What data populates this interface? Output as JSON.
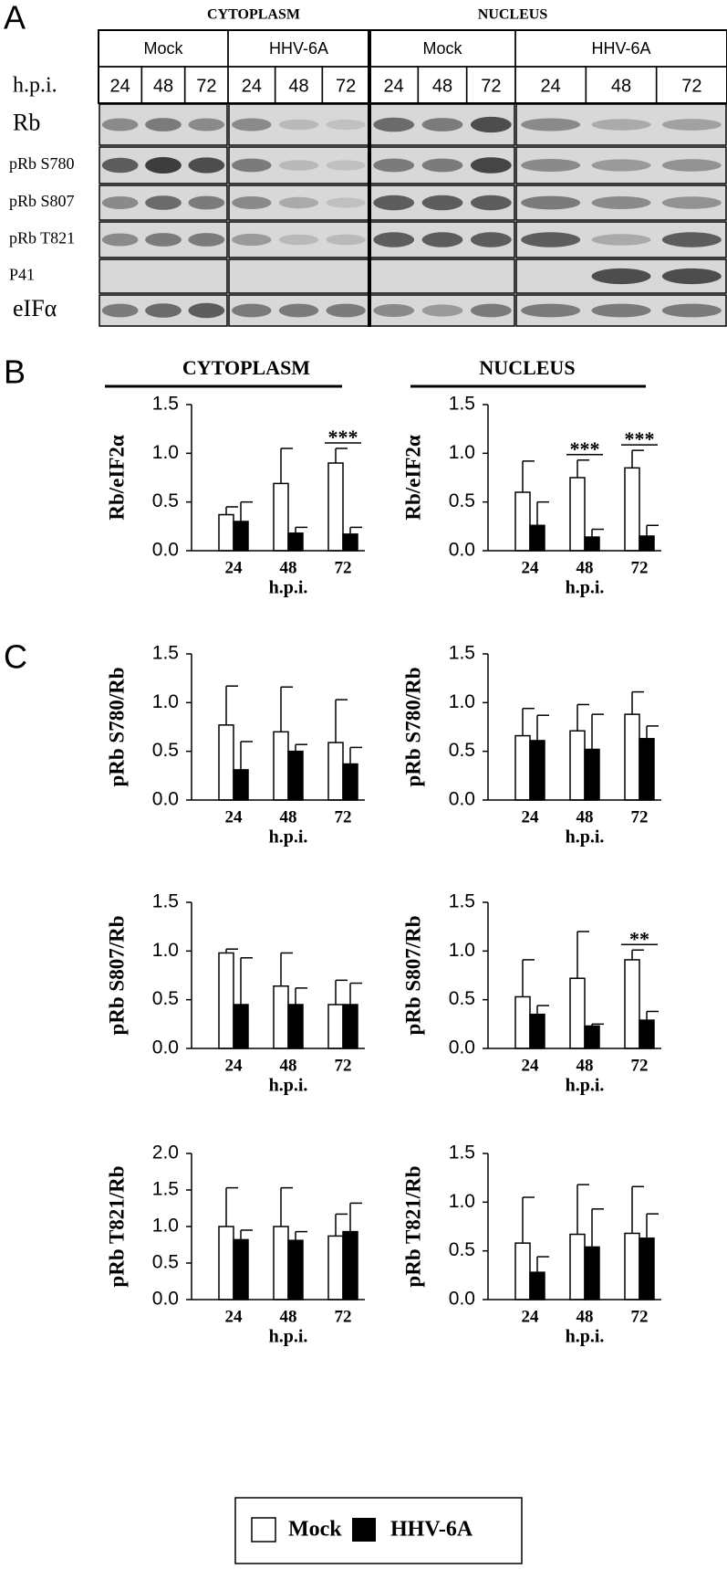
{
  "panel_labels": [
    "A",
    "B",
    "C"
  ],
  "blot": {
    "sections": [
      "CYTOPLASM",
      "NUCLEUS"
    ],
    "groups": [
      "Mock",
      "HHV-6A",
      "Mock",
      "HHV-6A"
    ],
    "hpi_label": "h.p.i.",
    "hpi": [
      "24",
      "48",
      "72"
    ],
    "rows": [
      "Rb",
      "pRb S780",
      "pRb S807",
      "pRb T821",
      "P41",
      "eIFα"
    ]
  },
  "section_headers": [
    "CYTOPLASM",
    "NUCLEUS"
  ],
  "chart_data": [
    {
      "type": "bar",
      "ylabel": "Rb/eIF2α",
      "xlabel": "h.p.i.",
      "categories": [
        "24",
        "48",
        "72"
      ],
      "ylim": [
        0,
        1.5
      ],
      "yticks": [
        {
          "value": 0,
          "label": "0.0"
        },
        {
          "value": 0.5,
          "label": "0.5"
        },
        {
          "value": 1,
          "label": "1.0"
        },
        {
          "value": 1.5,
          "label": "1.5"
        }
      ],
      "series": [
        {
          "name": "Mock",
          "color": "#ffffff",
          "values": [
            0.37,
            0.69,
            0.9
          ],
          "errors": [
            0.08,
            0.36,
            0.15
          ]
        },
        {
          "name": "HHV-6A",
          "color": "#000000",
          "values": [
            0.3,
            0.18,
            0.17
          ],
          "errors": [
            0.2,
            0.06,
            0.07
          ]
        }
      ],
      "annotations": [
        {
          "text": "***",
          "category": "72"
        }
      ]
    },
    {
      "type": "bar",
      "ylabel": "Rb/eIF2α",
      "xlabel": "h.p.i.",
      "categories": [
        "24",
        "48",
        "72"
      ],
      "ylim": [
        0,
        1.5
      ],
      "yticks": [
        {
          "value": 0,
          "label": "0.0"
        },
        {
          "value": 0.5,
          "label": "0.5"
        },
        {
          "value": 1,
          "label": "1.0"
        },
        {
          "value": 1.5,
          "label": "1.5"
        }
      ],
      "series": [
        {
          "name": "Mock",
          "color": "#ffffff",
          "values": [
            0.6,
            0.75,
            0.85
          ],
          "errors": [
            0.32,
            0.18,
            0.18
          ]
        },
        {
          "name": "HHV-6A",
          "color": "#000000",
          "values": [
            0.26,
            0.14,
            0.15
          ],
          "errors": [
            0.24,
            0.08,
            0.11
          ]
        }
      ],
      "annotations": [
        {
          "text": "***",
          "category": "48"
        },
        {
          "text": "***",
          "category": "72"
        }
      ]
    },
    {
      "type": "bar",
      "ylabel": "pRb S780/Rb",
      "xlabel": "h.p.i.",
      "categories": [
        "24",
        "48",
        "72"
      ],
      "ylim": [
        0,
        1.5
      ],
      "yticks": [
        {
          "value": 0,
          "label": "0.0"
        },
        {
          "value": 0.5,
          "label": "0.5"
        },
        {
          "value": 1,
          "label": "1.0"
        },
        {
          "value": 1.5,
          "label": "1.5"
        }
      ],
      "series": [
        {
          "name": "Mock",
          "color": "#ffffff",
          "values": [
            0.77,
            0.7,
            0.59
          ],
          "errors": [
            0.4,
            0.46,
            0.44
          ]
        },
        {
          "name": "HHV-6A",
          "color": "#000000",
          "values": [
            0.31,
            0.5,
            0.37
          ],
          "errors": [
            0.29,
            0.07,
            0.17
          ]
        }
      ]
    },
    {
      "type": "bar",
      "ylabel": "pRb S780/Rb",
      "xlabel": "h.p.i.",
      "categories": [
        "24",
        "48",
        "72"
      ],
      "ylim": [
        0,
        1.5
      ],
      "yticks": [
        {
          "value": 0,
          "label": "0.0"
        },
        {
          "value": 0.5,
          "label": "0.5"
        },
        {
          "value": 1,
          "label": "1.0"
        },
        {
          "value": 1.5,
          "label": "1.5"
        }
      ],
      "series": [
        {
          "name": "Mock",
          "color": "#ffffff",
          "values": [
            0.66,
            0.71,
            0.88
          ],
          "errors": [
            0.28,
            0.27,
            0.23
          ]
        },
        {
          "name": "HHV-6A",
          "color": "#000000",
          "values": [
            0.61,
            0.52,
            0.63
          ],
          "errors": [
            0.26,
            0.36,
            0.13
          ]
        }
      ]
    },
    {
      "type": "bar",
      "ylabel": "pRb S807/Rb",
      "xlabel": "h.p.i.",
      "categories": [
        "24",
        "48",
        "72"
      ],
      "ylim": [
        0,
        1.5
      ],
      "yticks": [
        {
          "value": 0,
          "label": "0.0"
        },
        {
          "value": 0.5,
          "label": "0.5"
        },
        {
          "value": 1,
          "label": "1.0"
        },
        {
          "value": 1.5,
          "label": "1.5"
        }
      ],
      "series": [
        {
          "name": "Mock",
          "color": "#ffffff",
          "values": [
            0.98,
            0.64,
            0.45
          ],
          "errors": [
            0.04,
            0.34,
            0.25
          ]
        },
        {
          "name": "HHV-6A",
          "color": "#000000",
          "values": [
            0.45,
            0.45,
            0.45
          ],
          "errors": [
            0.48,
            0.17,
            0.22
          ]
        }
      ]
    },
    {
      "type": "bar",
      "ylabel": "pRb S807/Rb",
      "xlabel": "h.p.i.",
      "categories": [
        "24",
        "48",
        "72"
      ],
      "ylim": [
        0,
        1.5
      ],
      "yticks": [
        {
          "value": 0,
          "label": "0.0"
        },
        {
          "value": 0.5,
          "label": "0.5"
        },
        {
          "value": 1,
          "label": "1.0"
        },
        {
          "value": 1.5,
          "label": "1.5"
        }
      ],
      "series": [
        {
          "name": "Mock",
          "color": "#ffffff",
          "values": [
            0.53,
            0.72,
            0.91
          ],
          "errors": [
            0.38,
            0.48,
            0.1
          ]
        },
        {
          "name": "HHV-6A",
          "color": "#000000",
          "values": [
            0.35,
            0.23,
            0.29
          ],
          "errors": [
            0.09,
            0.02,
            0.09
          ]
        }
      ],
      "annotations": [
        {
          "text": "**",
          "category": "72"
        }
      ]
    },
    {
      "type": "bar",
      "ylabel": "pRb T821/Rb",
      "xlabel": "h.p.i.",
      "categories": [
        "24",
        "48",
        "72"
      ],
      "ylim": [
        0,
        2
      ],
      "yticks": [
        {
          "value": 0,
          "label": "0.0"
        },
        {
          "value": 0.5,
          "label": "0.5"
        },
        {
          "value": 1,
          "label": "1.0"
        },
        {
          "value": 1.5,
          "label": "1.5"
        },
        {
          "value": 2,
          "label": "2.0"
        }
      ],
      "series": [
        {
          "name": "Mock",
          "color": "#ffffff",
          "values": [
            1.0,
            1.0,
            0.87
          ],
          "errors": [
            0.53,
            0.53,
            0.3
          ]
        },
        {
          "name": "HHV-6A",
          "color": "#000000",
          "values": [
            0.82,
            0.81,
            0.93
          ],
          "errors": [
            0.13,
            0.12,
            0.39
          ]
        }
      ]
    },
    {
      "type": "bar",
      "ylabel": "pRb T821/Rb",
      "xlabel": "h.p.i.",
      "categories": [
        "24",
        "48",
        "72"
      ],
      "ylim": [
        0,
        1.5
      ],
      "yticks": [
        {
          "value": 0,
          "label": "0.0"
        },
        {
          "value": 0.5,
          "label": "0.5"
        },
        {
          "value": 1,
          "label": "1.0"
        },
        {
          "value": 1.5,
          "label": "1.5"
        }
      ],
      "series": [
        {
          "name": "Mock",
          "color": "#ffffff",
          "values": [
            0.58,
            0.67,
            0.68
          ],
          "errors": [
            0.47,
            0.51,
            0.48
          ]
        },
        {
          "name": "HHV-6A",
          "color": "#000000",
          "values": [
            0.28,
            0.54,
            0.63
          ],
          "errors": [
            0.16,
            0.39,
            0.25
          ]
        }
      ]
    }
  ]
}
